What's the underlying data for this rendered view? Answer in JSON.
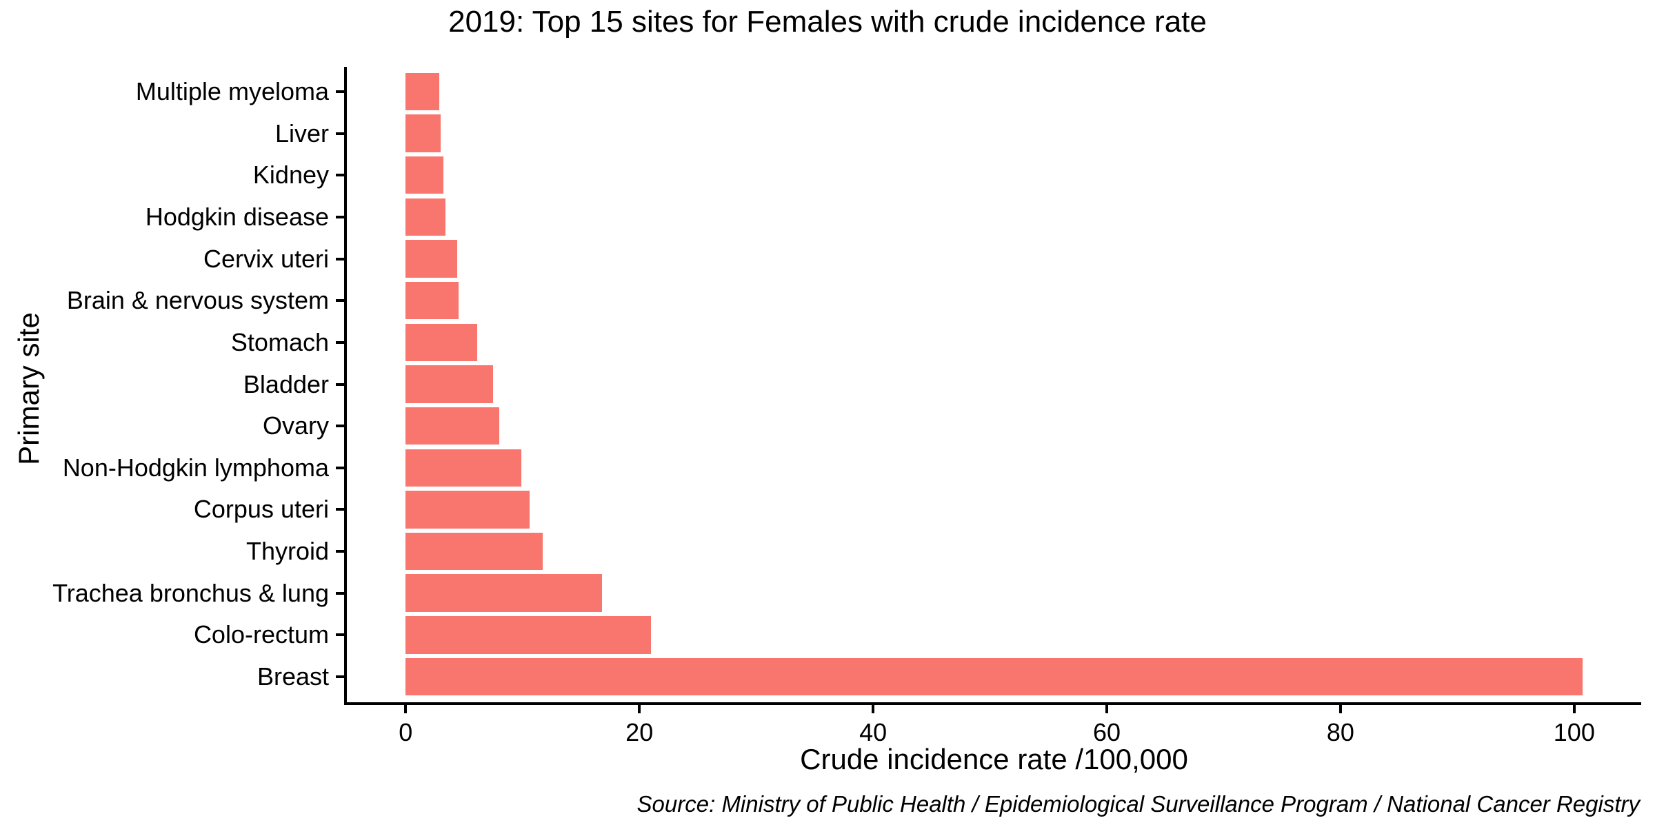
{
  "chart_data": {
    "type": "bar",
    "orientation": "horizontal",
    "title": "2019: Top 15 sites for Females with crude incidence rate",
    "xlabel": "Crude incidence rate /100,000",
    "ylabel": "Primary site",
    "source_note": "Source: Ministry of Public Health / Epidemiological Surveillance Program / National Cancer Registry",
    "categories": [
      "Multiple myeloma",
      "Liver",
      "Kidney",
      "Hodgkin disease",
      "Cervix uteri",
      "Brain & nervous system",
      "Stomach",
      "Bladder",
      "Ovary",
      "Non-Hodgkin lymphoma",
      "Corpus uteri",
      "Thyroid",
      "Trachea bronchus & lung",
      "Colo-rectum",
      "Breast"
    ],
    "values": [
      2.9,
      3.0,
      3.2,
      3.4,
      4.4,
      4.5,
      6.1,
      7.5,
      8.0,
      9.9,
      10.6,
      11.7,
      16.8,
      21.0,
      100.7
    ],
    "x_ticks": [
      0,
      20,
      40,
      60,
      80,
      100
    ],
    "xlim": [
      0,
      105.8
    ],
    "grid": "off",
    "legend": "none",
    "colors": {
      "bar": "#F8766D",
      "axis": "#000000",
      "text": "#000000"
    }
  }
}
